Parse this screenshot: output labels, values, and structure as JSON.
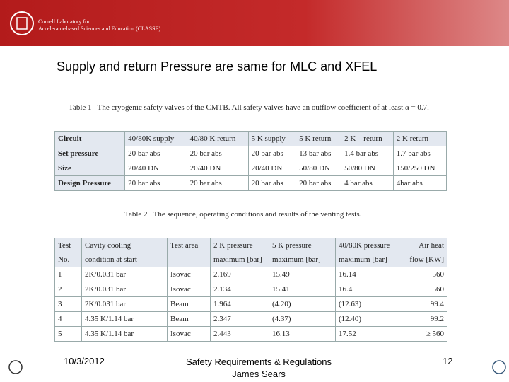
{
  "header": {
    "org_line1": "Cornell Laboratory for",
    "org_line2": "Accelerator-based Sciences and Education (CLASSE)"
  },
  "heading": "Supply and return Pressure are same for MLC and XFEL",
  "table1": {
    "label": "Table 1",
    "caption": "The cryogenic safety valves of the CMTB. All safety valves have an outflow coefficient of at least α = 0.7.",
    "rows": [
      [
        "Circuit",
        "40/80K supply",
        "40/80 K return",
        "5 K supply",
        "5 K return",
        "2 K    return",
        "2 K return"
      ],
      [
        "Set pressure",
        "20 bar abs",
        "20 bar abs",
        "20 bar abs",
        "13 bar abs",
        "1.4 bar abs",
        "1.7 bar abs"
      ],
      [
        "Size",
        "20/40 DN",
        "20/40 DN",
        "20/40 DN",
        "50/80 DN",
        "50/80 DN",
        "150/250 DN"
      ],
      [
        "Design Pressure",
        "20 bar abs",
        "20 bar abs",
        "20 bar abs",
        "20 bar abs",
        "4 bar abs",
        "4bar abs"
      ]
    ]
  },
  "table2": {
    "label": "Table 2",
    "caption": "The sequence, operating conditions and results of the venting tests.",
    "header": [
      [
        "Test",
        "Cavity cooling",
        "Test area",
        "2 K pressure",
        "5 K pressure",
        "40/80K pressure",
        "Air heat"
      ],
      [
        "No.",
        "condition at start",
        "",
        "maximum [bar]",
        "maximum [bar]",
        "maximum [bar]",
        "flow [KW]"
      ]
    ],
    "rows": [
      [
        "1",
        "2K/0.031 bar",
        "Isovac",
        "2.169",
        "15.49",
        "16.14",
        "560"
      ],
      [
        "2",
        "2K/0.031 bar",
        "Isovac",
        "2.134",
        "15.41",
        "16.4",
        "560"
      ],
      [
        "3",
        "2K/0.031 bar",
        "Beam",
        "1.964",
        "(4.20)",
        "(12.63)",
        "99.4"
      ],
      [
        "4",
        "4.35 K/1.14 bar",
        "Beam",
        "2.347",
        "(4.37)",
        "(12.40)",
        "99.2"
      ],
      [
        "5",
        "4.35 K/1.14 bar",
        "Isovac",
        "2.443",
        "16.13",
        "17.52",
        "≥ 560"
      ]
    ]
  },
  "footer": {
    "date": "10/3/2012",
    "title_line1": "Safety Requirements & Regulations",
    "title_line2": "James Sears",
    "page": "12"
  }
}
